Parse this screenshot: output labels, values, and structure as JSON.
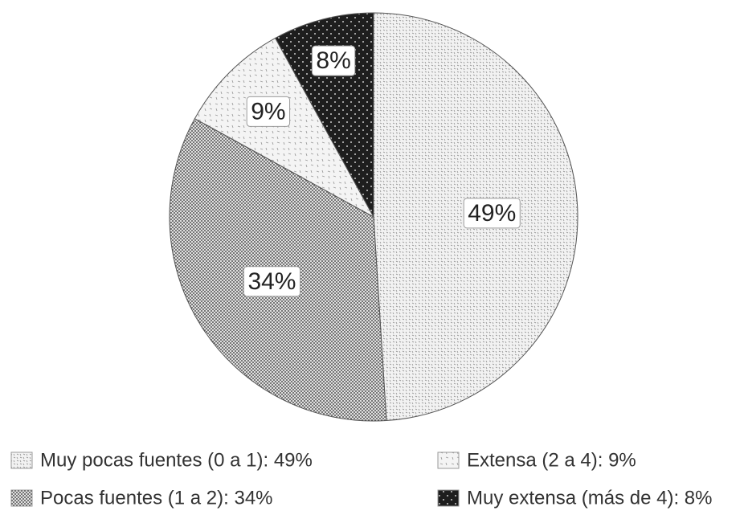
{
  "chart_data": {
    "type": "pie",
    "start_angle_deg": 0,
    "direction": "clockwise",
    "slices": [
      {
        "label": "Muy pocas fuentes (0 a 1)",
        "value": 49,
        "data_label": "49%",
        "legend_text": "Muy pocas fuentes (0 a 1): 49%",
        "fill_color": "#f2f2f2",
        "pattern": "fine-dashes"
      },
      {
        "label": "Pocas fuentes (1 a 2)",
        "value": 34,
        "data_label": "34%",
        "legend_text": "Pocas fuentes (1 a 2): 34%",
        "fill_color": "#8e8e8e",
        "pattern": "dense-dots"
      },
      {
        "label": "Extensa (2 a 4)",
        "value": 9,
        "data_label": "9%",
        "legend_text": "Extensa (2 a 4): 9%",
        "fill_color": "#f4f4f4",
        "pattern": "sparse-dashes"
      },
      {
        "label": "Muy extensa (más de 4)",
        "value": 8,
        "data_label": "8%",
        "legend_text": "Muy extensa (más de 4): 8%",
        "fill_color": "#1e1e1e",
        "pattern": "white-dots"
      }
    ],
    "legend": {
      "placement": "bottom",
      "columns": 2
    },
    "outline_color": "#555555"
  }
}
